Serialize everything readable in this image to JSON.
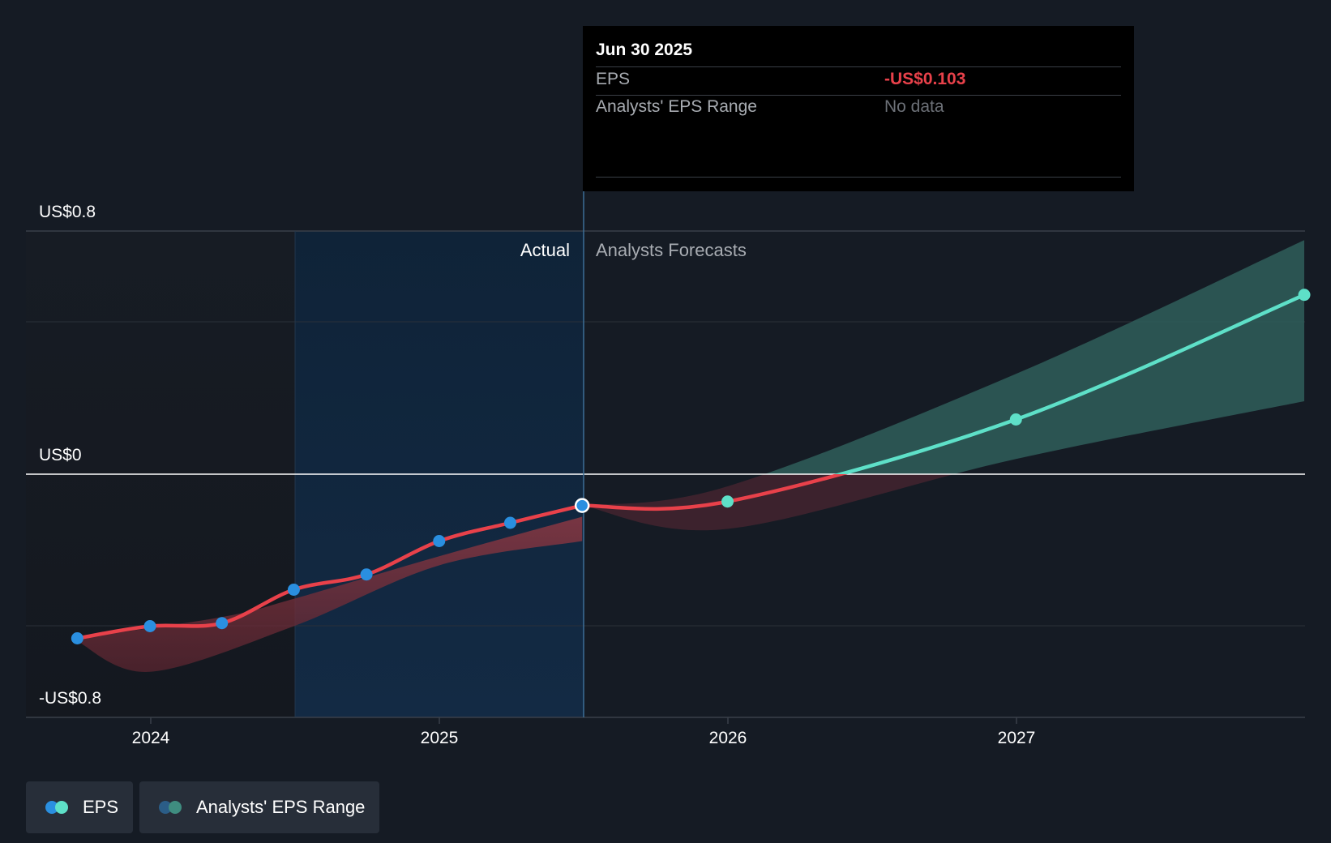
{
  "chart_data": {
    "type": "line",
    "x_ticks": [
      "2024",
      "2025",
      "2026",
      "2027"
    ],
    "y_labels": {
      "top": "US$0.8",
      "zero": "US$0",
      "bottom": "-US$0.8"
    },
    "ylim": [
      -0.8,
      0.8
    ],
    "region_labels": {
      "actual": "Actual",
      "forecast": "Analysts Forecasts"
    },
    "divider_date": "2025-06-30",
    "series": [
      {
        "name": "EPS",
        "segment": "actual",
        "color": "#e8414a",
        "marker_color": "#2a8fe0",
        "points": [
          {
            "x": "2023-09-30",
            "y": -0.54
          },
          {
            "x": "2023-12-31",
            "y": -0.5
          },
          {
            "x": "2024-03-31",
            "y": -0.49
          },
          {
            "x": "2024-06-30",
            "y": -0.38
          },
          {
            "x": "2024-09-30",
            "y": -0.33
          },
          {
            "x": "2024-12-31",
            "y": -0.22
          },
          {
            "x": "2025-03-31",
            "y": -0.16
          },
          {
            "x": "2025-06-30",
            "y": -0.103
          }
        ]
      },
      {
        "name": "EPS",
        "segment": "forecast",
        "color": "#e8414a",
        "color_above_zero": "#5ee0c8",
        "marker_color": "#5ee0c8",
        "points": [
          {
            "x": "2025-06-30",
            "y": -0.103
          },
          {
            "x": "2025-12-31",
            "y": -0.09
          },
          {
            "x": "2026-12-31",
            "y": 0.18
          },
          {
            "x": "2027-12-31",
            "y": 0.59
          }
        ]
      }
    ],
    "range_actual": {
      "upper": [
        {
          "x": "2023-09-30",
          "y": -0.54
        },
        {
          "x": "2024-03-31",
          "y": -0.47
        },
        {
          "x": "2024-06-30",
          "y": -0.41
        },
        {
          "x": "2024-12-31",
          "y": -0.27
        },
        {
          "x": "2025-06-30",
          "y": -0.14
        }
      ],
      "lower": [
        {
          "x": "2025-06-30",
          "y": -0.22
        },
        {
          "x": "2024-12-31",
          "y": -0.3
        },
        {
          "x": "2024-06-30",
          "y": -0.5
        },
        {
          "x": "2023-12-31",
          "y": -0.65
        },
        {
          "x": "2023-09-30",
          "y": -0.55
        }
      ]
    },
    "range_forecast": {
      "upper": [
        {
          "x": "2025-06-30",
          "y": -0.103
        },
        {
          "x": "2025-12-31",
          "y": -0.04
        },
        {
          "x": "2026-12-31",
          "y": 0.33
        },
        {
          "x": "2027-12-31",
          "y": 0.77
        }
      ],
      "lower": [
        {
          "x": "2027-12-31",
          "y": 0.24
        },
        {
          "x": "2026-12-31",
          "y": 0.05
        },
        {
          "x": "2025-12-31",
          "y": -0.18
        },
        {
          "x": "2025-06-30",
          "y": -0.103
        }
      ]
    }
  },
  "tooltip": {
    "date": "Jun 30 2025",
    "rows": [
      {
        "label": "EPS",
        "value": "-US$0.103"
      },
      {
        "label": "Analysts' EPS Range",
        "value": "No data"
      }
    ]
  },
  "legend": {
    "eps_label": "EPS",
    "range_label": "Analysts' EPS Range",
    "eps_colors": [
      "#2a8fe0",
      "#5ee0c8"
    ],
    "range_colors": [
      "#2b5d87",
      "#3f8d80"
    ]
  },
  "colors": {
    "background": "#151b24",
    "actual_shade": "#0f2a44",
    "eps_line": "#e8414a",
    "forecast_line": "#5ee0c8"
  }
}
